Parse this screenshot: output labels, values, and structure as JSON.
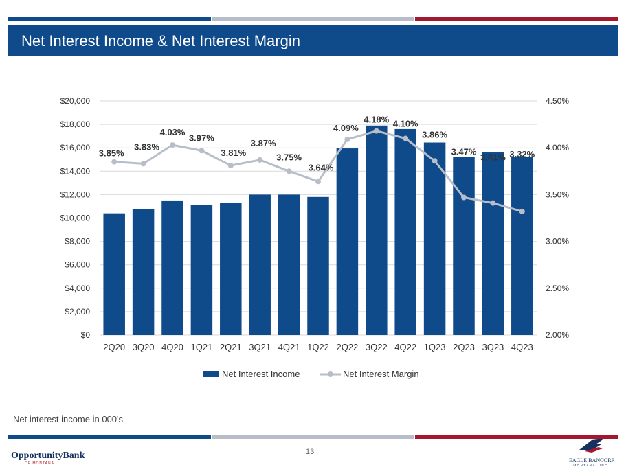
{
  "slide": {
    "title": "Net Interest Income & Net Interest Margin",
    "footnote": "Net interest income in 000's",
    "page_number": "13"
  },
  "branding": {
    "left_logo": {
      "name": "OpportunityBank",
      "sub": "OF MONTANA"
    },
    "right_logo": {
      "name": "EAGLE BANCORP",
      "sub": "MONTANA, INC."
    }
  },
  "colors": {
    "title_bar": "#0f4a8a",
    "bar": "#0f4a8a",
    "line": "#b8bec9",
    "stripe_blue": "#0f4a8a",
    "stripe_gray": "#b8bec9",
    "stripe_red": "#a3172f"
  },
  "chart_data": {
    "type": "bar",
    "categories": [
      "2Q20",
      "3Q20",
      "4Q20",
      "1Q21",
      "2Q21",
      "3Q21",
      "4Q21",
      "1Q22",
      "2Q22",
      "3Q22",
      "4Q22",
      "1Q23",
      "2Q23",
      "3Q23",
      "4Q23"
    ],
    "series": [
      {
        "name": "Net Interest Income",
        "type": "bar",
        "axis": "left",
        "values": [
          10400,
          10750,
          11500,
          11100,
          11300,
          12000,
          12000,
          11800,
          15950,
          17900,
          17600,
          16450,
          15250,
          15600,
          15200
        ]
      },
      {
        "name": "Net Interest Margin",
        "type": "line",
        "axis": "right",
        "values": [
          3.85,
          3.83,
          4.03,
          3.97,
          3.81,
          3.87,
          3.75,
          3.64,
          4.09,
          4.18,
          4.1,
          3.86,
          3.47,
          3.41,
          3.32
        ],
        "labels": [
          "3.85%",
          "3.83%",
          "4.03%",
          "3.97%",
          "3.81%",
          "3.87%",
          "3.75%",
          "3.64%",
          "4.09%",
          "4.18%",
          "4.10%",
          "3.86%",
          "3.47%",
          "3.41%",
          "3.32%"
        ]
      }
    ],
    "y_left": {
      "ylim": [
        0,
        20000
      ],
      "ticks": [
        0,
        2000,
        4000,
        6000,
        8000,
        10000,
        12000,
        14000,
        16000,
        18000,
        20000
      ],
      "tick_labels": [
        "$0",
        "$2,000",
        "$4,000",
        "$6,000",
        "$8,000",
        "$10,000",
        "$12,000",
        "$14,000",
        "$16,000",
        "$18,000",
        "$20,000"
      ]
    },
    "y_right": {
      "ylim": [
        2.0,
        4.5
      ],
      "ticks": [
        2.0,
        2.5,
        3.0,
        3.5,
        4.0,
        4.5
      ],
      "tick_labels": [
        "2.00%",
        "2.50%",
        "3.00%",
        "3.50%",
        "4.00%",
        "4.50%"
      ]
    },
    "grid": true,
    "legend": "bottom"
  }
}
